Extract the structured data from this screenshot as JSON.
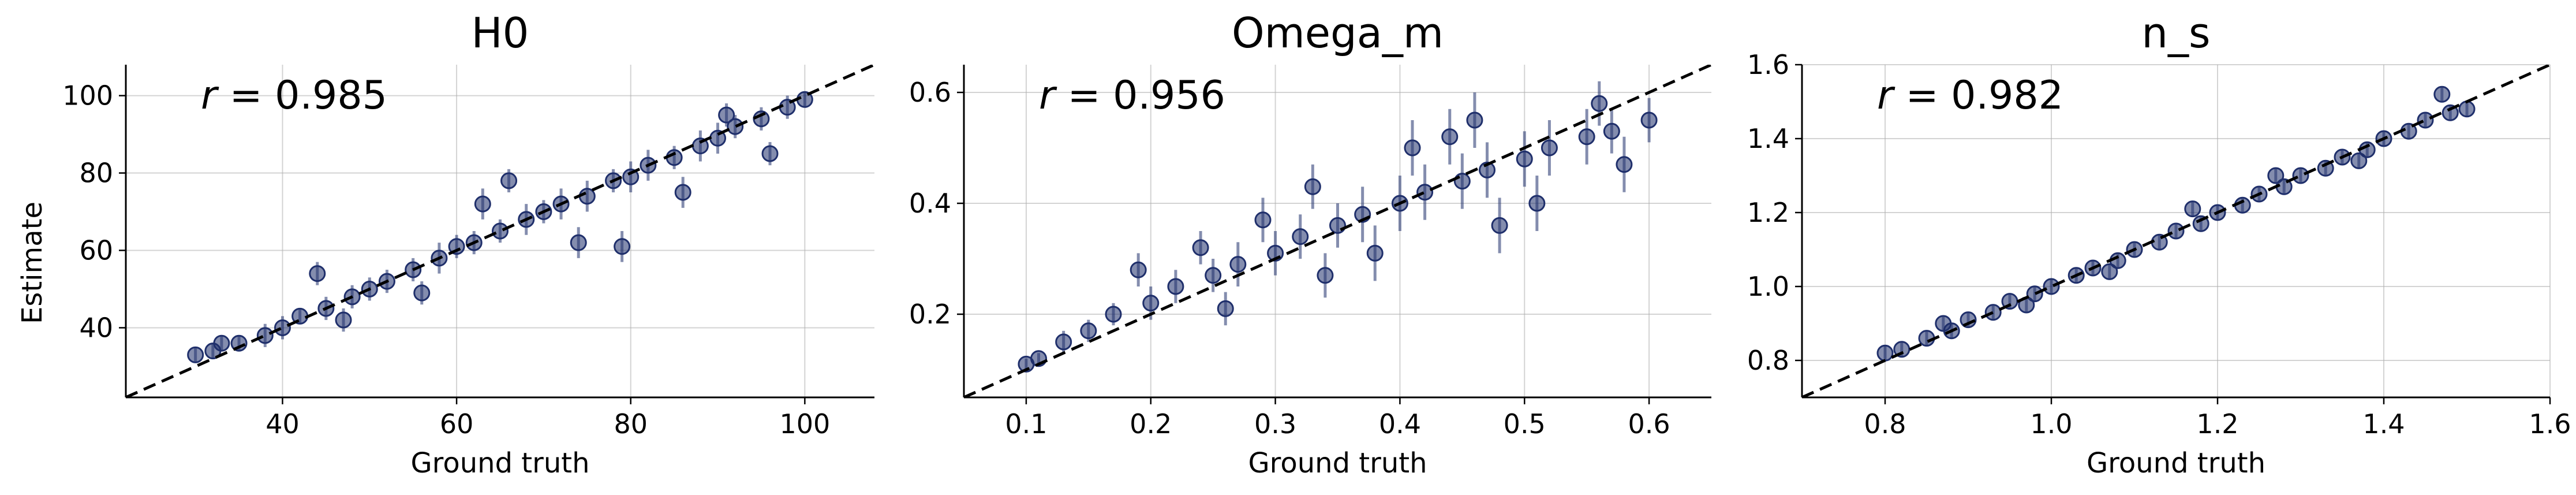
{
  "figure": {
    "y_axis_label": "Estimate",
    "x_axis_label": "Ground truth",
    "point_color": "#1f2f6b",
    "diagonal_color": "#000000"
  },
  "chart_data": [
    {
      "type": "scatter",
      "title": "H0",
      "xlabel": "Ground truth",
      "ylabel": "Estimate",
      "r_text": "r = 0.985",
      "r_symbol": "r",
      "r_value": "= 0.985",
      "xlim": [
        22,
        108
      ],
      "ylim": [
        22,
        108
      ],
      "xticks": [
        40,
        60,
        80,
        100
      ],
      "yticks": [
        40,
        60,
        80,
        100
      ],
      "grid": true,
      "identity_line": true,
      "x": [
        30,
        32,
        35,
        38,
        40,
        42,
        45,
        48,
        50,
        52,
        55,
        58,
        60,
        62,
        65,
        68,
        70,
        72,
        75,
        78,
        80,
        82,
        85,
        88,
        90,
        92,
        95,
        98,
        100,
        33,
        44,
        56,
        66,
        74,
        86,
        96,
        47,
        63,
        79,
        91
      ],
      "y": [
        33,
        34,
        36,
        38,
        40,
        43,
        45,
        48,
        50,
        52,
        55,
        58,
        61,
        62,
        65,
        68,
        70,
        72,
        74,
        78,
        79,
        82,
        84,
        87,
        89,
        92,
        94,
        97,
        99,
        36,
        54,
        49,
        78,
        62,
        75,
        85,
        42,
        72,
        61,
        95
      ],
      "yerr": [
        2,
        2,
        2,
        3,
        3,
        2,
        3,
        3,
        3,
        3,
        3,
        4,
        3,
        3,
        3,
        4,
        3,
        4,
        4,
        3,
        4,
        4,
        3,
        4,
        4,
        3,
        3,
        3,
        2,
        2,
        3,
        3,
        3,
        4,
        4,
        3,
        3,
        4,
        4,
        3
      ]
    },
    {
      "type": "scatter",
      "title": "Omega_m",
      "xlabel": "Ground truth",
      "ylabel": "",
      "r_text": "r = 0.956",
      "r_symbol": "r",
      "r_value": "= 0.956",
      "xlim": [
        0.05,
        0.65
      ],
      "ylim": [
        0.05,
        0.65
      ],
      "xticks": [
        0.1,
        0.2,
        0.3,
        0.4,
        0.5,
        0.6
      ],
      "yticks": [
        0.2,
        0.4,
        0.6
      ],
      "grid": true,
      "identity_line": true,
      "x": [
        0.1,
        0.11,
        0.13,
        0.15,
        0.17,
        0.2,
        0.22,
        0.25,
        0.27,
        0.3,
        0.32,
        0.35,
        0.37,
        0.4,
        0.42,
        0.45,
        0.47,
        0.5,
        0.52,
        0.55,
        0.57,
        0.6,
        0.24,
        0.29,
        0.34,
        0.41,
        0.46,
        0.51,
        0.56,
        0.19,
        0.38,
        0.48,
        0.58,
        0.33,
        0.44,
        0.26
      ],
      "y": [
        0.11,
        0.12,
        0.15,
        0.17,
        0.2,
        0.22,
        0.25,
        0.27,
        0.29,
        0.31,
        0.34,
        0.36,
        0.38,
        0.4,
        0.42,
        0.44,
        0.46,
        0.48,
        0.5,
        0.52,
        0.53,
        0.55,
        0.32,
        0.37,
        0.27,
        0.5,
        0.55,
        0.4,
        0.58,
        0.28,
        0.31,
        0.36,
        0.47,
        0.43,
        0.52,
        0.21
      ],
      "yerr": [
        0.01,
        0.01,
        0.02,
        0.02,
        0.02,
        0.03,
        0.03,
        0.03,
        0.04,
        0.04,
        0.04,
        0.04,
        0.05,
        0.05,
        0.05,
        0.05,
        0.05,
        0.05,
        0.05,
        0.05,
        0.04,
        0.04,
        0.03,
        0.04,
        0.04,
        0.05,
        0.05,
        0.05,
        0.04,
        0.03,
        0.05,
        0.05,
        0.05,
        0.04,
        0.05,
        0.03
      ]
    },
    {
      "type": "scatter",
      "title": "n_s",
      "xlabel": "Ground truth",
      "ylabel": "",
      "r_text": "r = 0.982",
      "r_symbol": "r",
      "r_value": "= 0.982",
      "xlim": [
        0.7,
        1.6
      ],
      "ylim": [
        0.7,
        1.6
      ],
      "xticks": [
        0.8,
        1.0,
        1.2,
        1.4,
        1.6
      ],
      "yticks": [
        0.8,
        1.0,
        1.2,
        1.4,
        1.6
      ],
      "grid": true,
      "identity_line": true,
      "x": [
        0.8,
        0.82,
        0.85,
        0.88,
        0.9,
        0.93,
        0.95,
        0.98,
        1.0,
        1.03,
        1.05,
        1.08,
        1.1,
        1.13,
        1.15,
        1.18,
        1.2,
        1.23,
        1.25,
        1.28,
        1.3,
        1.33,
        1.35,
        1.38,
        1.4,
        1.43,
        1.45,
        1.48,
        1.5,
        0.87,
        1.07,
        1.27,
        1.47,
        0.97,
        1.17,
        1.37
      ],
      "y": [
        0.82,
        0.83,
        0.86,
        0.88,
        0.91,
        0.93,
        0.96,
        0.98,
        1.0,
        1.03,
        1.05,
        1.07,
        1.1,
        1.12,
        1.15,
        1.17,
        1.2,
        1.22,
        1.25,
        1.27,
        1.3,
        1.32,
        1.35,
        1.37,
        1.4,
        1.42,
        1.45,
        1.47,
        1.48,
        0.9,
        1.04,
        1.3,
        1.52,
        0.95,
        1.21,
        1.34
      ],
      "yerr": [
        0.02,
        0.02,
        0.02,
        0.02,
        0.02,
        0.02,
        0.02,
        0.02,
        0.02,
        0.02,
        0.02,
        0.02,
        0.02,
        0.02,
        0.02,
        0.02,
        0.02,
        0.02,
        0.02,
        0.02,
        0.02,
        0.02,
        0.02,
        0.02,
        0.02,
        0.02,
        0.02,
        0.02,
        0.02,
        0.02,
        0.02,
        0.02,
        0.02,
        0.02,
        0.02,
        0.02
      ]
    }
  ]
}
